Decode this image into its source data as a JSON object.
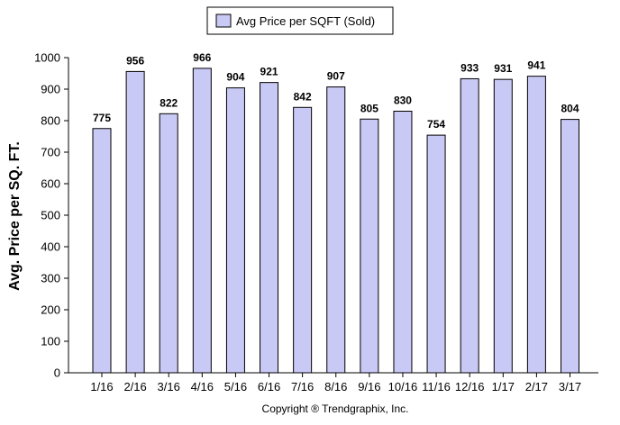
{
  "chart_data": {
    "type": "bar",
    "categories": [
      "1/16",
      "2/16",
      "3/16",
      "4/16",
      "5/16",
      "6/16",
      "7/16",
      "8/16",
      "9/16",
      "10/16",
      "11/16",
      "12/16",
      "1/17",
      "2/17",
      "3/17"
    ],
    "series": [
      {
        "name": "Avg Price per SQFT (Sold)",
        "values": [
          775,
          956,
          822,
          966,
          904,
          921,
          842,
          907,
          805,
          830,
          754,
          933,
          931,
          941,
          804
        ],
        "color": "#c9c9f5"
      }
    ],
    "data_labels": [
      "775",
      "956",
      "822",
      "966",
      "904",
      "921",
      "842",
      "907",
      "805",
      "830",
      "754",
      "933",
      "931",
      "941",
      "804"
    ],
    "xlabel": "",
    "ylabel": "Avg. Price per SQ. FT.",
    "ylim": [
      0,
      1000
    ],
    "yticks": [
      0,
      100,
      200,
      300,
      400,
      500,
      600,
      700,
      800,
      900,
      1000
    ],
    "grid": false,
    "legend_placement": "top-center"
  },
  "footer": {
    "copyright": "Copyright ® Trendgraphix, Inc."
  },
  "colors": {
    "bar_fill": "#c9c9f5",
    "bar_stroke": "#000000",
    "axis": "#000000"
  }
}
